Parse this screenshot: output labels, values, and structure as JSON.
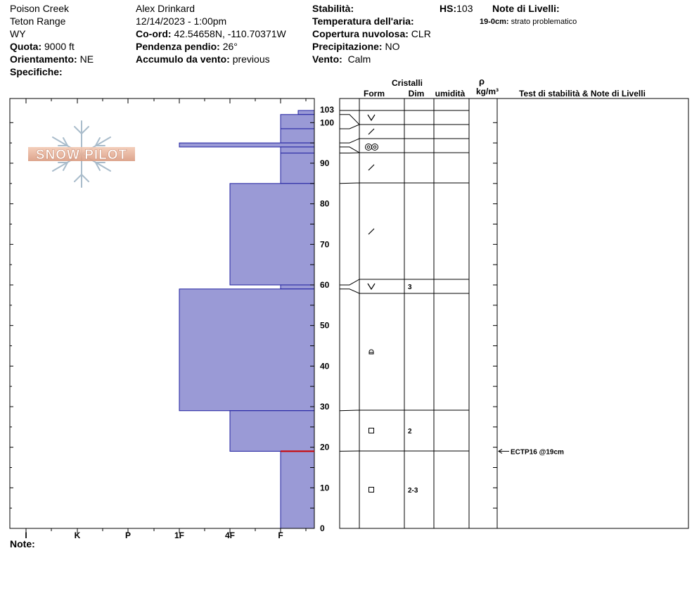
{
  "header": {
    "location": "Poison Creek",
    "range": "Teton Range",
    "state": "WY",
    "elevation_label": "Quota:",
    "elevation": "9000 ft",
    "aspect_label": "Orientamento:",
    "aspect": "NE",
    "specifics_label": "Specifiche:",
    "observer": "Alex Drinkard",
    "datetime": "12/14/2023 - 1:00pm",
    "coord_label": "Co-ord:",
    "coord": "42.54658N, -110.70371W",
    "slope_label": "Pendenza pendio:",
    "slope": "26°",
    "wind_loading_label": "Accumulo da vento:",
    "wind_loading": "previous",
    "stability_label": "Stabilità:",
    "air_temp_label": "Temperatura dell'aria:",
    "cloud_label": "Copertura nuvolosa:",
    "cloud": "CLR",
    "precip_label": "Precipitazione:",
    "precip": "NO",
    "wind_label": "Vento:",
    "wind": "Calm",
    "hs_label": "HS:",
    "hs": "103",
    "layer_notes_label": "Note di Livelli:",
    "layer_note_depth": "19-0cm:",
    "layer_note_text": "strato problematico",
    "notes_label": "Note:"
  },
  "logo": {
    "text": "SNOW PILOT"
  },
  "columns": {
    "crystals": "Cristalli",
    "form": "Form",
    "dim": "Dim",
    "moisture": "umidità",
    "rho": "ρ",
    "density_unit": "kg/m³",
    "tests": "Test di stabilità & Note di Livelli"
  },
  "chart_data": {
    "type": "bar",
    "orientation": "horizontal",
    "description_axis": "hardness",
    "x_categories": [
      "I",
      "K",
      "P",
      "1F",
      "4F",
      "F"
    ],
    "y_range": [
      0,
      103
    ],
    "y_ticks": [
      0,
      10,
      20,
      30,
      40,
      50,
      60,
      70,
      80,
      90,
      100,
      103
    ],
    "layers": [
      {
        "top": 103,
        "bottom": 102,
        "hardness": "F-"
      },
      {
        "top": 102,
        "bottom": 98.5,
        "hardness": "F",
        "form": "V"
      },
      {
        "top": 98.5,
        "bottom": 95,
        "hardness": "F",
        "form": "/"
      },
      {
        "top": 95,
        "bottom": 94,
        "hardness": "1F",
        "form": "oo"
      },
      {
        "top": 94,
        "bottom": 92.5,
        "hardness": "F",
        "form": "oo"
      },
      {
        "top": 92.5,
        "bottom": 85,
        "hardness": "F",
        "form": "/"
      },
      {
        "top": 85,
        "bottom": 60,
        "hardness": "4F",
        "form": "/"
      },
      {
        "top": 60,
        "bottom": 59,
        "hardness": "F",
        "form": "V",
        "size": "3"
      },
      {
        "top": 59,
        "bottom": 29,
        "hardness": "1F",
        "form": "rounded"
      },
      {
        "top": 29,
        "bottom": 19,
        "hardness": "4F",
        "form": "□",
        "size": "2"
      },
      {
        "top": 19,
        "bottom": 0,
        "hardness": "F",
        "form": "□",
        "size": "2-3"
      }
    ],
    "crystal_rows": [
      {
        "form": "V",
        "size": "",
        "pos": 100
      },
      {
        "form": "/",
        "size": "",
        "pos": 97
      },
      {
        "form": "oo",
        "size": "",
        "pos": 93.5
      },
      {
        "form": "/",
        "size": "",
        "pos": 88.5
      },
      {
        "form": "/",
        "size": "",
        "pos": 73
      },
      {
        "form": "V",
        "size": "3",
        "pos": 59.5
      },
      {
        "form": "rounded",
        "size": "",
        "pos": 43.5
      },
      {
        "form": "□",
        "size": "2",
        "pos": 24
      },
      {
        "form": "□",
        "size": "2-3",
        "pos": 9.5
      }
    ],
    "tests": [
      {
        "depth": 19,
        "label": "ECTP16 @19cm"
      }
    ],
    "problem_layer_depth": 19
  }
}
